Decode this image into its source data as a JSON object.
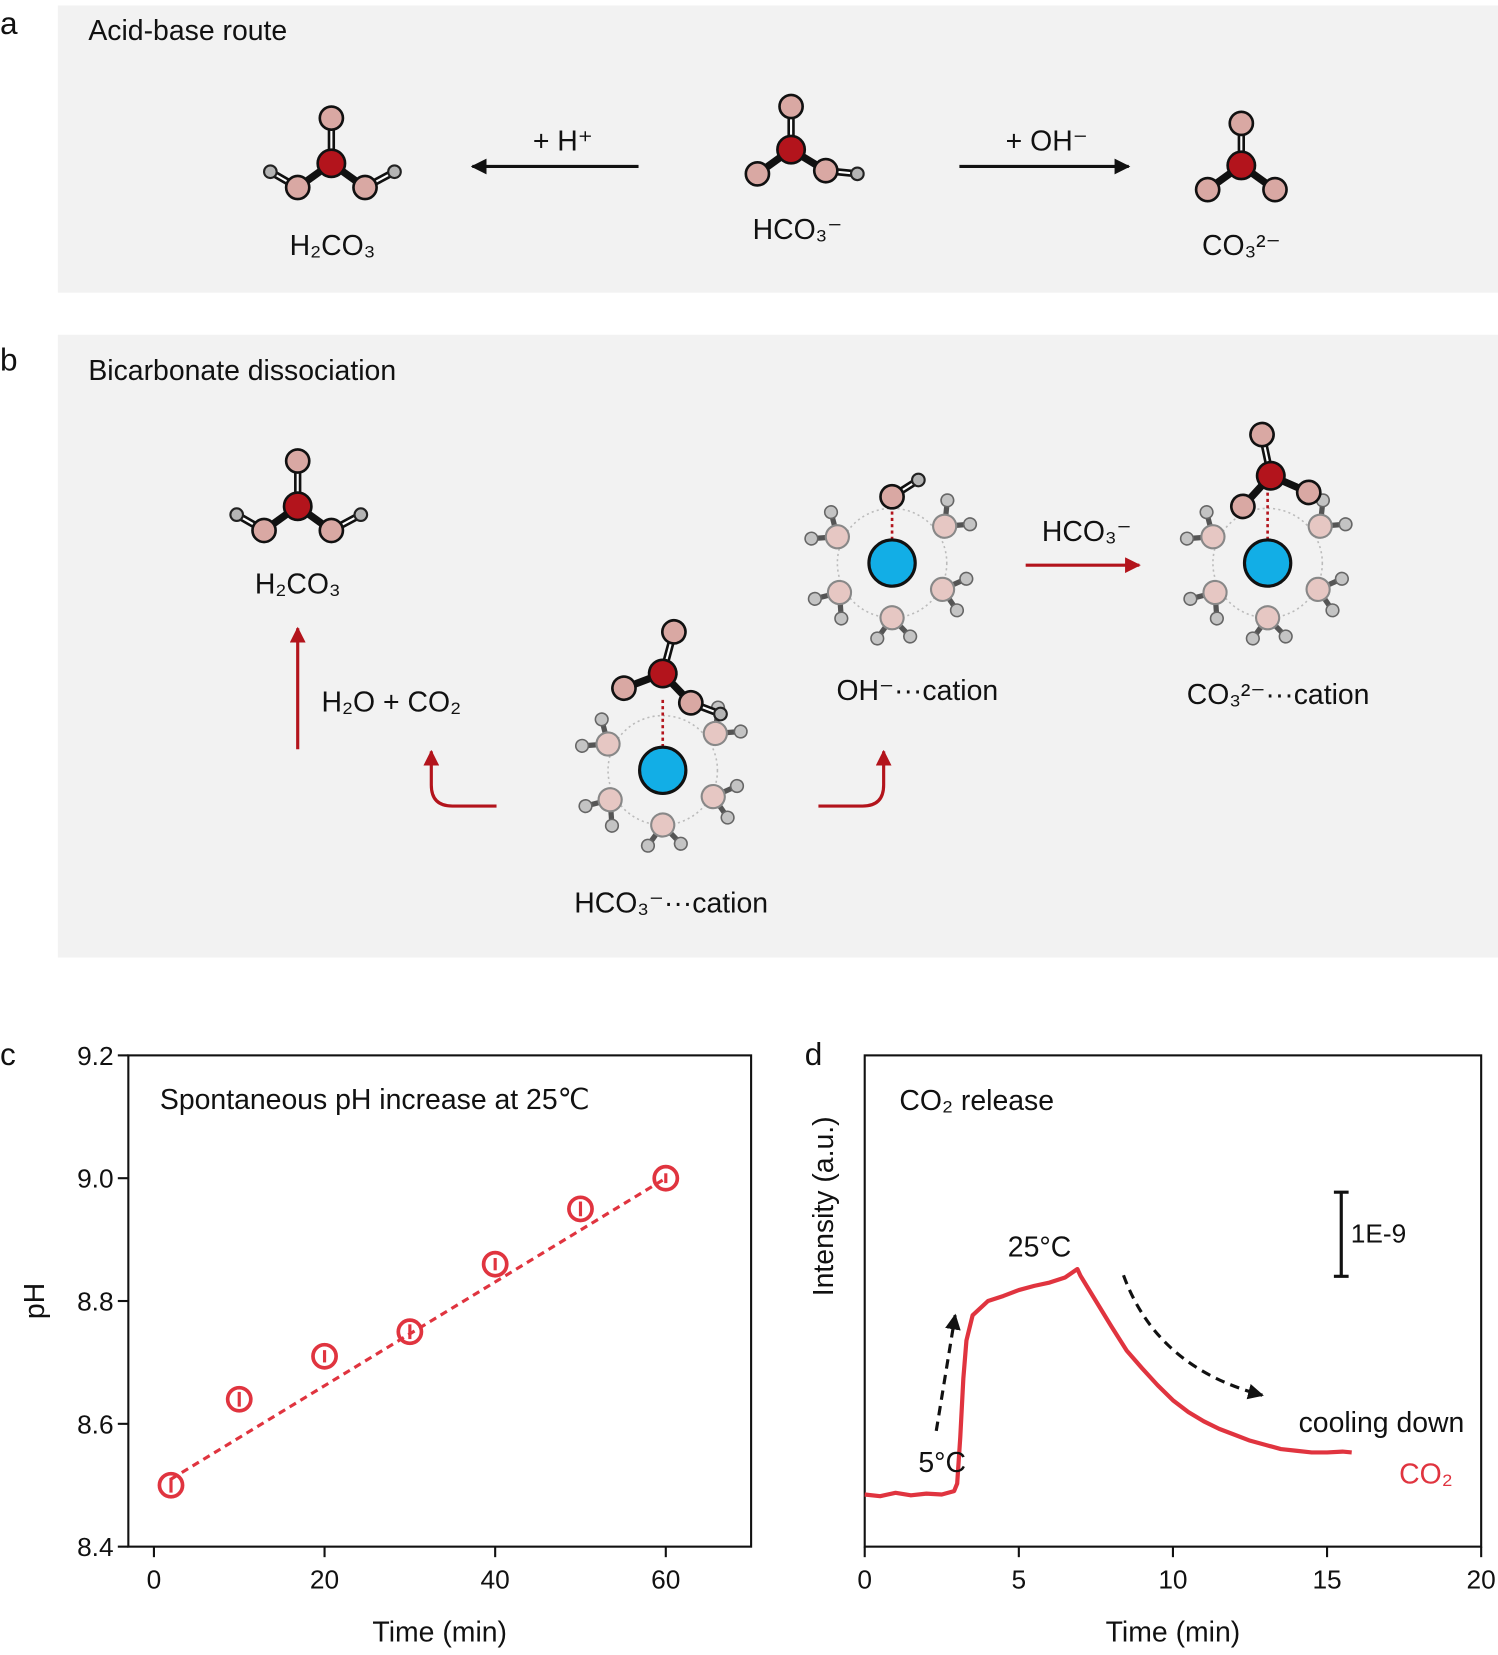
{
  "diagram": {
    "a": {
      "letter": "a",
      "title": "Acid-base route",
      "species": [
        "H₂CO₃",
        "HCO₃⁻",
        "CO₃²⁻"
      ],
      "reagents": [
        "+ H⁺",
        "+ OH⁻"
      ]
    },
    "b": {
      "letter": "b",
      "title": "Bicarbonate dissociation",
      "species": [
        "H₂CO₃",
        "HCO₃⁻···cation",
        "OH⁻···cation",
        "CO₃²⁻···cation"
      ],
      "reagents": [
        "H₂O + CO₂",
        "HCO₃⁻"
      ]
    }
  },
  "chart_data": [
    {
      "type": "scatter",
      "panel_label": "c",
      "annotation": "Spontaneous pH increase at 25℃",
      "xlabel": "Time (min)",
      "ylabel": "pH",
      "xlim": [
        -3,
        70
      ],
      "ylim": [
        8.4,
        9.2
      ],
      "xticks": [
        0,
        20,
        40,
        60
      ],
      "yticks": [
        8.4,
        8.6,
        8.8,
        {
          "value": 9,
          "label": "9.0"
        },
        9.2
      ],
      "color": "#e0343f",
      "x": [
        2,
        10,
        20,
        30,
        40,
        50,
        60
      ],
      "values": [
        8.5,
        8.64,
        8.71,
        8.75,
        8.86,
        8.95,
        9.0
      ],
      "errors": [
        0.012,
        0.012,
        0.01,
        0.012,
        0.01,
        0.012,
        0.008
      ],
      "fit": {
        "x": [
          2,
          60
        ],
        "values": [
          8.51,
          9.0
        ]
      }
    },
    {
      "type": "line",
      "panel_label": "d",
      "title": "CO₂ release",
      "xlabel": "Time (min)",
      "ylabel": "Intensity (a.u.)",
      "xlim": [
        0,
        20
      ],
      "ylim": [
        0,
        5.84
      ],
      "xticks": [
        0,
        5,
        10,
        15,
        20
      ],
      "annotations": [
        "25°C",
        "5°C",
        "cooling down"
      ],
      "scale_bar": {
        "label": "1E-9",
        "value": 1
      },
      "x": [
        0,
        0.5,
        1,
        1.5,
        2,
        2.5,
        2.9,
        3,
        3.1,
        3.2,
        3.3,
        3.5,
        4,
        4.5,
        5,
        5.5,
        6,
        6.5,
        6.9,
        7,
        7.5,
        8,
        8.5,
        9,
        9.5,
        10,
        10.5,
        11,
        11.5,
        12,
        12.5,
        13,
        13.5,
        14,
        14.5,
        15,
        15.5,
        15.8
      ],
      "series": [
        {
          "name": "CO₂",
          "color": "#e0343f",
          "values": [
            0.62,
            0.6,
            0.64,
            0.61,
            0.63,
            0.62,
            0.66,
            0.75,
            1.3,
            2.0,
            2.45,
            2.75,
            2.92,
            2.98,
            3.05,
            3.1,
            3.14,
            3.2,
            3.3,
            3.22,
            2.92,
            2.62,
            2.33,
            2.12,
            1.92,
            1.74,
            1.6,
            1.49,
            1.4,
            1.33,
            1.26,
            1.21,
            1.16,
            1.14,
            1.12,
            1.12,
            1.13,
            1.12
          ]
        }
      ]
    }
  ]
}
